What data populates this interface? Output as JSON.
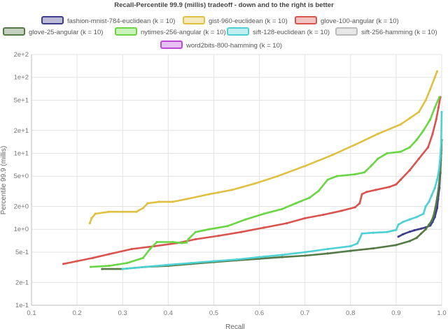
{
  "chart_data": {
    "type": "line",
    "title": "Recall-Percentile 99.9 (millis) tradeoff - down and to the right is better",
    "xlabel": "Recall",
    "ylabel": "Percentile 99.9 (millis)",
    "xlim": [
      0.1,
      1.0
    ],
    "ylim": [
      0.1,
      200
    ],
    "yscale": "log",
    "grid": true,
    "legend_position": "top",
    "x_ticks": [
      "0.1",
      "0.2",
      "0.3",
      "0.4",
      "0.5",
      "0.6",
      "0.7",
      "0.8",
      "0.9",
      "1.0"
    ],
    "y_ticks": [
      {
        "label": "2e+2",
        "value": 200
      },
      {
        "label": "1e+2",
        "value": 100
      },
      {
        "label": "5e+1",
        "value": 50
      },
      {
        "label": "2e+1",
        "value": 20
      },
      {
        "label": "1e+1",
        "value": 10
      },
      {
        "label": "5e+0",
        "value": 5
      },
      {
        "label": "2e+0",
        "value": 2
      },
      {
        "label": "1e+0",
        "value": 1
      },
      {
        "label": "5e-1",
        "value": 0.5
      },
      {
        "label": "2e-1",
        "value": 0.2
      },
      {
        "label": "1e-1",
        "value": 0.1
      }
    ],
    "series": [
      {
        "name": "fashion-mnist-784-euclidean (k = 10)",
        "color": "#3d3d8c",
        "points": [
          [
            0.905,
            0.8
          ],
          [
            0.915,
            0.86
          ],
          [
            0.93,
            0.93
          ],
          [
            0.94,
            0.97
          ],
          [
            0.955,
            1.02
          ],
          [
            0.965,
            1.06
          ],
          [
            0.975,
            1.12
          ],
          [
            0.98,
            1.25
          ],
          [
            0.985,
            1.45
          ],
          [
            0.99,
            1.9
          ],
          [
            0.992,
            2.5
          ],
          [
            0.995,
            3.5
          ],
          [
            0.997,
            5.5
          ],
          [
            0.998,
            8
          ],
          [
            0.999,
            11
          ],
          [
            0.9995,
            15
          ]
        ]
      },
      {
        "name": "gist-960-euclidean (k = 10)",
        "color": "#e0c042",
        "points": [
          [
            0.228,
            1.2
          ],
          [
            0.232,
            1.4
          ],
          [
            0.24,
            1.6
          ],
          [
            0.27,
            1.7
          ],
          [
            0.3,
            1.7
          ],
          [
            0.33,
            1.7
          ],
          [
            0.345,
            1.9
          ],
          [
            0.355,
            2.2
          ],
          [
            0.38,
            2.3
          ],
          [
            0.41,
            2.3
          ],
          [
            0.44,
            2.5
          ],
          [
            0.49,
            2.9
          ],
          [
            0.54,
            3.3
          ],
          [
            0.59,
            4.0
          ],
          [
            0.64,
            5.0
          ],
          [
            0.7,
            6.8
          ],
          [
            0.76,
            9.5
          ],
          [
            0.81,
            13
          ],
          [
            0.86,
            18
          ],
          [
            0.91,
            24
          ],
          [
            0.93,
            29
          ],
          [
            0.95,
            35
          ],
          [
            0.965,
            50
          ],
          [
            0.975,
            70
          ],
          [
            0.985,
            100
          ],
          [
            0.99,
            120
          ]
        ]
      },
      {
        "name": "glove-100-angular (k = 10)",
        "color": "#d9534f",
        "points": [
          [
            0.17,
            0.35
          ],
          [
            0.2,
            0.38
          ],
          [
            0.235,
            0.42
          ],
          [
            0.27,
            0.47
          ],
          [
            0.32,
            0.55
          ],
          [
            0.37,
            0.6
          ],
          [
            0.42,
            0.66
          ],
          [
            0.46,
            0.74
          ],
          [
            0.51,
            0.82
          ],
          [
            0.56,
            0.92
          ],
          [
            0.61,
            1.05
          ],
          [
            0.66,
            1.2
          ],
          [
            0.7,
            1.4
          ],
          [
            0.74,
            1.55
          ],
          [
            0.78,
            1.75
          ],
          [
            0.81,
            1.95
          ],
          [
            0.82,
            2.2
          ],
          [
            0.825,
            2.9
          ],
          [
            0.835,
            3.1
          ],
          [
            0.855,
            3.3
          ],
          [
            0.885,
            3.6
          ],
          [
            0.9,
            3.9
          ],
          [
            0.91,
            4.5
          ],
          [
            0.93,
            6.0
          ],
          [
            0.95,
            8.5
          ],
          [
            0.97,
            12
          ],
          [
            0.98,
            18
          ],
          [
            0.988,
            28
          ],
          [
            0.993,
            40
          ],
          [
            0.997,
            55
          ]
        ]
      },
      {
        "name": "glove-25-angular (k = 10)",
        "color": "#557a47",
        "points": [
          [
            0.255,
            0.3
          ],
          [
            0.3,
            0.3
          ],
          [
            0.35,
            0.32
          ],
          [
            0.4,
            0.33
          ],
          [
            0.45,
            0.35
          ],
          [
            0.5,
            0.37
          ],
          [
            0.55,
            0.39
          ],
          [
            0.6,
            0.41
          ],
          [
            0.65,
            0.43
          ],
          [
            0.7,
            0.45
          ],
          [
            0.75,
            0.48
          ],
          [
            0.8,
            0.52
          ],
          [
            0.85,
            0.56
          ],
          [
            0.9,
            0.62
          ],
          [
            0.93,
            0.7
          ],
          [
            0.945,
            0.77
          ],
          [
            0.955,
            0.88
          ],
          [
            0.965,
            1.0
          ],
          [
            0.972,
            1.15
          ],
          [
            0.978,
            1.3
          ],
          [
            0.982,
            1.5
          ],
          [
            0.986,
            1.9
          ],
          [
            0.99,
            2.6
          ],
          [
            0.994,
            3.8
          ],
          [
            0.997,
            6
          ],
          [
            0.999,
            10
          ],
          [
            1.0,
            15
          ]
        ]
      },
      {
        "name": "nytimes-256-angular (k = 10)",
        "color": "#6ad643",
        "points": [
          [
            0.23,
            0.32
          ],
          [
            0.27,
            0.33
          ],
          [
            0.31,
            0.36
          ],
          [
            0.345,
            0.42
          ],
          [
            0.36,
            0.55
          ],
          [
            0.375,
            0.68
          ],
          [
            0.41,
            0.68
          ],
          [
            0.43,
            0.66
          ],
          [
            0.44,
            0.67
          ],
          [
            0.445,
            0.75
          ],
          [
            0.46,
            0.92
          ],
          [
            0.49,
            1.0
          ],
          [
            0.53,
            1.1
          ],
          [
            0.57,
            1.35
          ],
          [
            0.61,
            1.6
          ],
          [
            0.65,
            1.85
          ],
          [
            0.68,
            2.2
          ],
          [
            0.71,
            2.6
          ],
          [
            0.73,
            3.2
          ],
          [
            0.75,
            4.5
          ],
          [
            0.77,
            5.0
          ],
          [
            0.81,
            5.3
          ],
          [
            0.83,
            5.6
          ],
          [
            0.845,
            6.8
          ],
          [
            0.86,
            8.5
          ],
          [
            0.88,
            10
          ],
          [
            0.91,
            10.5
          ],
          [
            0.93,
            12
          ],
          [
            0.945,
            15
          ],
          [
            0.96,
            20
          ],
          [
            0.975,
            28
          ],
          [
            0.985,
            40
          ],
          [
            0.995,
            55
          ]
        ]
      },
      {
        "name": "sift-128-euclidean (k = 10)",
        "color": "#4ed1d4",
        "points": [
          [
            0.3,
            0.3
          ],
          [
            0.35,
            0.32
          ],
          [
            0.4,
            0.34
          ],
          [
            0.45,
            0.36
          ],
          [
            0.5,
            0.38
          ],
          [
            0.55,
            0.4
          ],
          [
            0.6,
            0.43
          ],
          [
            0.65,
            0.46
          ],
          [
            0.7,
            0.5
          ],
          [
            0.75,
            0.55
          ],
          [
            0.8,
            0.6
          ],
          [
            0.815,
            0.65
          ],
          [
            0.82,
            0.75
          ],
          [
            0.825,
            0.88
          ],
          [
            0.85,
            0.9
          ],
          [
            0.88,
            0.92
          ],
          [
            0.9,
            0.98
          ],
          [
            0.905,
            1.15
          ],
          [
            0.915,
            1.25
          ],
          [
            0.93,
            1.35
          ],
          [
            0.945,
            1.45
          ],
          [
            0.96,
            1.6
          ],
          [
            0.965,
            2.0
          ],
          [
            0.972,
            2.3
          ],
          [
            0.978,
            2.8
          ],
          [
            0.985,
            3.5
          ],
          [
            0.99,
            4.5
          ],
          [
            0.994,
            6
          ],
          [
            0.997,
            9
          ],
          [
            0.999,
            14
          ],
          [
            1.0,
            35
          ]
        ]
      },
      {
        "name": "sift-256-hamming (k = 10)",
        "color": "#bbbbbb",
        "points": []
      },
      {
        "name": "word2bits-800-hamming (k = 10)",
        "color": "#b84ad6",
        "points": []
      }
    ]
  }
}
